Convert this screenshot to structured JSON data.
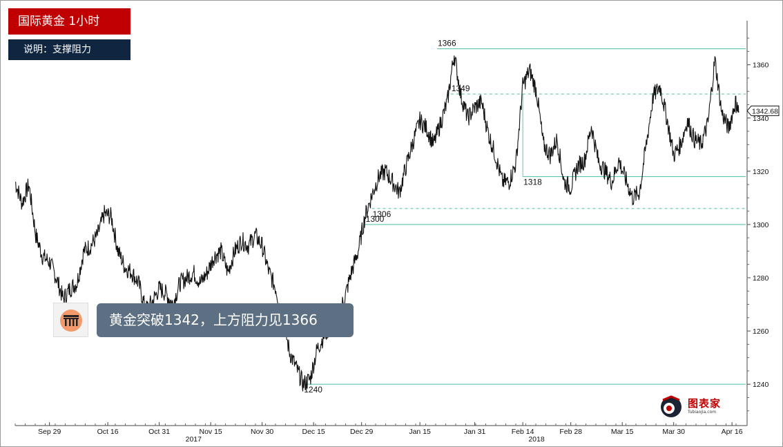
{
  "header": {
    "title": "国际黄金  1小时",
    "subtitle": "说明：支撑阻力"
  },
  "notification": {
    "text": "黄金突破1342，上方阻力见1366",
    "icon": "app-logo-icon"
  },
  "watermark": {
    "brand": "图表家",
    "sub": "Tubiaojia.com"
  },
  "chart_data": {
    "type": "line",
    "title": "",
    "xlabel": "",
    "ylabel": "",
    "ylim": [
      1225,
      1376
    ],
    "y_ticks": [
      1240,
      1260,
      1280,
      1300,
      1320,
      1340,
      1360
    ],
    "x_ticks": [
      {
        "label": "Sep 29",
        "date": "2017-09-29"
      },
      {
        "label": "Oct 16",
        "date": "2017-10-16"
      },
      {
        "label": "Oct 31",
        "date": "2017-10-31"
      },
      {
        "label": "Nov 15",
        "date": "2017-11-15"
      },
      {
        "label": "Nov 30",
        "date": "2017-11-30"
      },
      {
        "label": "Dec 15",
        "date": "2017-12-15"
      },
      {
        "label": "Dec 29",
        "date": "2017-12-29"
      },
      {
        "label": "Jan 15",
        "date": "2018-01-15"
      },
      {
        "label": "Jan 31",
        "date": "2018-01-31"
      },
      {
        "label": "Feb 14",
        "date": "2018-02-14"
      },
      {
        "label": "Feb 28",
        "date": "2018-02-28"
      },
      {
        "label": "Mar 15",
        "date": "2018-03-15"
      },
      {
        "label": "Mar 30",
        "date": "2018-03-30"
      },
      {
        "label": "Apr 16",
        "date": "2018-04-16"
      }
    ],
    "year_labels": [
      {
        "label": "2017",
        "date": "2017-11-10"
      },
      {
        "label": "2018",
        "date": "2018-02-18"
      }
    ],
    "last_price": "1342.68",
    "levels": [
      {
        "value": 1366,
        "label": "1366",
        "style": "solid",
        "from": "2018-01-20"
      },
      {
        "value": 1349,
        "label": "1349",
        "style": "dashed",
        "from": "2018-01-24"
      },
      {
        "value": 1318,
        "label": "1318",
        "style": "solid",
        "from": "2018-02-14"
      },
      {
        "value": 1306,
        "label": "1306",
        "style": "dashed",
        "from": "2018-01-01"
      },
      {
        "value": 1300,
        "label": "1300",
        "style": "solid",
        "from": "2017-12-30"
      },
      {
        "value": 1240,
        "label": "1240",
        "style": "solid",
        "from": "2017-12-12"
      }
    ],
    "line_color": "#111111",
    "level_color": "#5cc6ae",
    "series": [
      {
        "values": [
          [
            "2017-09-19",
            1316
          ],
          [
            "2017-09-21",
            1308
          ],
          [
            "2017-09-23",
            1315
          ],
          [
            "2017-09-25",
            1296
          ],
          [
            "2017-09-27",
            1288
          ],
          [
            "2017-09-29",
            1286
          ],
          [
            "2017-10-01",
            1280
          ],
          [
            "2017-10-03",
            1272
          ],
          [
            "2017-10-05",
            1276
          ],
          [
            "2017-10-07",
            1278
          ],
          [
            "2017-10-09",
            1290
          ],
          [
            "2017-10-11",
            1292
          ],
          [
            "2017-10-13",
            1296
          ],
          [
            "2017-10-15",
            1304
          ],
          [
            "2017-10-17",
            1303
          ],
          [
            "2017-10-19",
            1290
          ],
          [
            "2017-10-21",
            1284
          ],
          [
            "2017-10-23",
            1282
          ],
          [
            "2017-10-25",
            1278
          ],
          [
            "2017-10-27",
            1268
          ],
          [
            "2017-10-29",
            1271
          ],
          [
            "2017-10-31",
            1276
          ],
          [
            "2017-11-02",
            1274
          ],
          [
            "2017-11-04",
            1270
          ],
          [
            "2017-11-06",
            1278
          ],
          [
            "2017-11-08",
            1280
          ],
          [
            "2017-11-10",
            1282
          ],
          [
            "2017-11-12",
            1278
          ],
          [
            "2017-11-14",
            1282
          ],
          [
            "2017-11-16",
            1288
          ],
          [
            "2017-11-18",
            1290
          ],
          [
            "2017-11-20",
            1282
          ],
          [
            "2017-11-22",
            1290
          ],
          [
            "2017-11-24",
            1294
          ],
          [
            "2017-11-26",
            1292
          ],
          [
            "2017-11-28",
            1296
          ],
          [
            "2017-11-30",
            1292
          ],
          [
            "2017-12-02",
            1282
          ],
          [
            "2017-12-04",
            1276
          ],
          [
            "2017-12-06",
            1265
          ],
          [
            "2017-12-08",
            1252
          ],
          [
            "2017-12-10",
            1246
          ],
          [
            "2017-12-12",
            1240
          ],
          [
            "2017-12-14",
            1242
          ],
          [
            "2017-12-16",
            1253
          ],
          [
            "2017-12-18",
            1258
          ],
          [
            "2017-12-20",
            1262
          ],
          [
            "2017-12-22",
            1266
          ],
          [
            "2017-12-24",
            1272
          ],
          [
            "2017-12-26",
            1282
          ],
          [
            "2017-12-28",
            1290
          ],
          [
            "2017-12-30",
            1303
          ],
          [
            "2018-01-01",
            1311
          ],
          [
            "2018-01-03",
            1318
          ],
          [
            "2018-01-05",
            1320
          ],
          [
            "2018-01-07",
            1316
          ],
          [
            "2018-01-09",
            1312
          ],
          [
            "2018-01-11",
            1322
          ],
          [
            "2018-01-13",
            1331
          ],
          [
            "2018-01-15",
            1339
          ],
          [
            "2018-01-17",
            1336
          ],
          [
            "2018-01-19",
            1330
          ],
          [
            "2018-01-21",
            1338
          ],
          [
            "2018-01-23",
            1346
          ],
          [
            "2018-01-25",
            1364
          ],
          [
            "2018-01-27",
            1348
          ],
          [
            "2018-01-29",
            1340
          ],
          [
            "2018-01-31",
            1344
          ],
          [
            "2018-02-02",
            1346
          ],
          [
            "2018-02-04",
            1334
          ],
          [
            "2018-02-06",
            1326
          ],
          [
            "2018-02-08",
            1316
          ],
          [
            "2018-02-10",
            1316
          ],
          [
            "2018-02-12",
            1323
          ],
          [
            "2018-02-14",
            1352
          ],
          [
            "2018-02-16",
            1358
          ],
          [
            "2018-02-18",
            1350
          ],
          [
            "2018-02-20",
            1330
          ],
          [
            "2018-02-22",
            1326
          ],
          [
            "2018-02-24",
            1332
          ],
          [
            "2018-02-26",
            1316
          ],
          [
            "2018-02-28",
            1314
          ],
          [
            "2018-03-02",
            1322
          ],
          [
            "2018-03-04",
            1324
          ],
          [
            "2018-03-06",
            1337
          ],
          [
            "2018-03-08",
            1324
          ],
          [
            "2018-03-10",
            1320
          ],
          [
            "2018-03-12",
            1316
          ],
          [
            "2018-03-14",
            1324
          ],
          [
            "2018-03-16",
            1317
          ],
          [
            "2018-03-18",
            1310
          ],
          [
            "2018-03-20",
            1312
          ],
          [
            "2018-03-22",
            1330
          ],
          [
            "2018-03-24",
            1348
          ],
          [
            "2018-03-26",
            1352
          ],
          [
            "2018-03-28",
            1340
          ],
          [
            "2018-03-30",
            1326
          ],
          [
            "2018-04-01",
            1330
          ],
          [
            "2018-04-03",
            1339
          ],
          [
            "2018-04-05",
            1332
          ],
          [
            "2018-04-07",
            1330
          ],
          [
            "2018-04-09",
            1338
          ],
          [
            "2018-04-11",
            1362
          ],
          [
            "2018-04-13",
            1342
          ],
          [
            "2018-04-15",
            1336
          ],
          [
            "2018-04-17",
            1346
          ],
          [
            "2018-04-18",
            1342
          ]
        ]
      }
    ]
  }
}
